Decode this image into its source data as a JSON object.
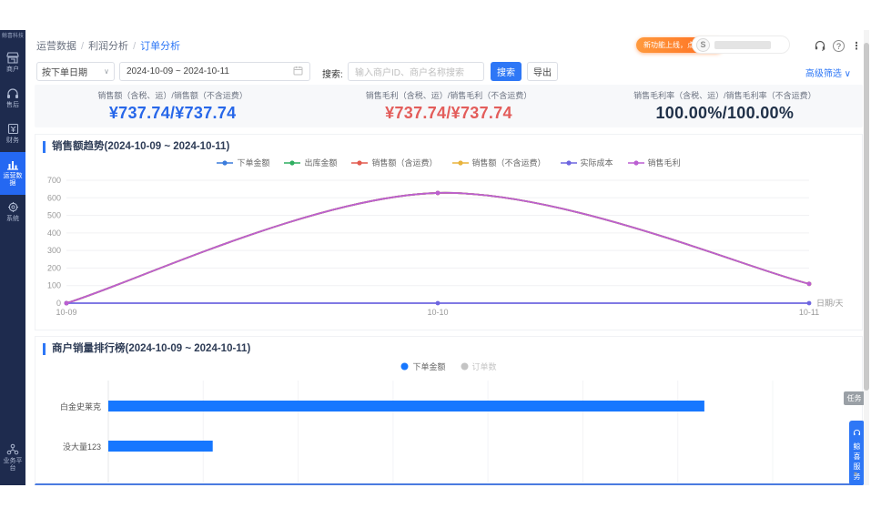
{
  "sidebar": {
    "logo": "鲸喜科技",
    "items": [
      {
        "label": "商户",
        "icon": "storefront-icon"
      },
      {
        "label": "售后",
        "icon": "headset-icon"
      },
      {
        "label": "财务",
        "icon": "invoice-icon"
      },
      {
        "label": "运营数据",
        "icon": "bar-chart-icon",
        "active": true
      },
      {
        "label": "系统",
        "icon": "gear-icon"
      },
      {
        "label": "业务平台",
        "icon": "org-icon"
      }
    ]
  },
  "topbar": {
    "breadcrumb": [
      "运营数据",
      "利润分析",
      "订单分析"
    ],
    "promo_badge": "新功能上线，点击查看",
    "avatar_initial": "S",
    "icons": [
      "customer-service-icon",
      "help-icon",
      "more-icon"
    ]
  },
  "filters": {
    "date_type": "按下单日期",
    "date_type_arrow": "∨",
    "date_range": "2024-10-09 ~ 2024-10-11",
    "search_label": "搜索:",
    "search_placeholder": "输入商户ID、商户名称搜索",
    "search_button": "搜索",
    "export_button": "导出",
    "advanced_filter": "高级筛选 ∨"
  },
  "kpis": [
    {
      "label": "销售额（含税、运）/销售额（不含运费）",
      "value": "¥737.74/¥737.74",
      "color": "#2767e9"
    },
    {
      "label": "销售毛利（含税、运）/销售毛利（不含运费）",
      "value": "¥737.74/¥737.74",
      "color": "#e35d5b"
    },
    {
      "label": "销售毛利率（含税、运）/销售毛利率（不含运费）",
      "value": "100.00%/100.00%",
      "color": "#1f3048"
    }
  ],
  "chart_data": [
    {
      "type": "line",
      "title": "销售额趋势(2024-10-09 ~ 2024-10-11)",
      "x": [
        "10-09",
        "10-10",
        "10-11"
      ],
      "xlabel": "日期/天",
      "ylim": [
        0,
        700
      ],
      "yticks": [
        0,
        100,
        200,
        300,
        400,
        500,
        600,
        700
      ],
      "grid": true,
      "legend_position": "top-center",
      "series": [
        {
          "name": "下单金额",
          "color": "#3b7cdc",
          "values": [
            0,
            627.74,
            110
          ]
        },
        {
          "name": "出库金额",
          "color": "#2fae60",
          "values": [
            0,
            627.74,
            110
          ]
        },
        {
          "name": "销售额（含运费）",
          "color": "#e25a4e",
          "values": [
            0,
            627.74,
            110
          ]
        },
        {
          "name": "销售额（不含运费）",
          "color": "#e8b33c",
          "values": [
            0,
            627.74,
            110
          ]
        },
        {
          "name": "实际成本",
          "color": "#6e66e0",
          "values": [
            0,
            0,
            0
          ]
        },
        {
          "name": "销售毛利",
          "color": "#bb5fd2",
          "values": [
            0,
            627.74,
            110
          ]
        }
      ]
    },
    {
      "type": "bar",
      "orientation": "horizontal",
      "title": "商户销量排行榜(2024-10-09 ~ 2024-10-11)",
      "categories": [
        "白金史莱克",
        "没大量123"
      ],
      "xlim": [
        0,
        700
      ],
      "legend_position": "top-center",
      "series": [
        {
          "name": "下单金额",
          "color": "#1677ff",
          "values": [
            628,
            110
          ],
          "active": true
        },
        {
          "name": "订单数",
          "color": "#c4c4c4",
          "values": [],
          "active": false
        }
      ]
    }
  ],
  "floating": {
    "task_tag": "任务",
    "service_button": "鲸喜服务",
    "service_caret": "▾"
  }
}
